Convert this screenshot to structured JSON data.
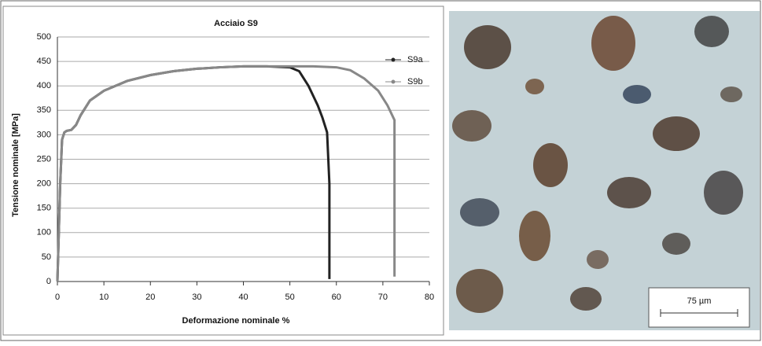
{
  "chart_data": {
    "type": "line",
    "title": "Acciaio S9",
    "x_label": "Deformazione nominale %",
    "y_label": "Tensione nominale [MPa]",
    "xlim": [
      0,
      80
    ],
    "xticks": [
      0,
      10,
      20,
      30,
      40,
      50,
      60,
      70,
      80
    ],
    "ylim": [
      0,
      500
    ],
    "yticks": [
      0,
      50,
      100,
      150,
      200,
      250,
      300,
      350,
      400,
      450,
      500
    ],
    "grid": true,
    "legend": "upper right",
    "series": [
      {
        "name": "S9a",
        "color": "#222222",
        "x": [
          0,
          0.3,
          0.6,
          1,
          1.5,
          2,
          3,
          4,
          5,
          7,
          10,
          15,
          20,
          25,
          30,
          35,
          40,
          45,
          50,
          52,
          54,
          56,
          57,
          58,
          58.5,
          58.5
        ],
        "values": [
          0,
          100,
          200,
          290,
          305,
          308,
          310,
          320,
          340,
          370,
          390,
          410,
          422,
          430,
          435,
          438,
          440,
          440,
          438,
          430,
          400,
          360,
          335,
          305,
          200,
          5
        ]
      },
      {
        "name": "S9b",
        "color": "#888888",
        "x": [
          0,
          0.3,
          0.6,
          1,
          1.5,
          2,
          3,
          4,
          5,
          7,
          10,
          15,
          20,
          25,
          30,
          35,
          40,
          45,
          50,
          55,
          60,
          63,
          66,
          69,
          71,
          72.5,
          72.5,
          72.5
        ],
        "values": [
          0,
          100,
          200,
          290,
          305,
          308,
          310,
          320,
          340,
          370,
          390,
          410,
          422,
          430,
          435,
          438,
          440,
          440,
          440,
          440,
          438,
          432,
          415,
          390,
          360,
          330,
          150,
          10
        ]
      }
    ]
  },
  "image": {
    "scale_label": "75 µm"
  }
}
